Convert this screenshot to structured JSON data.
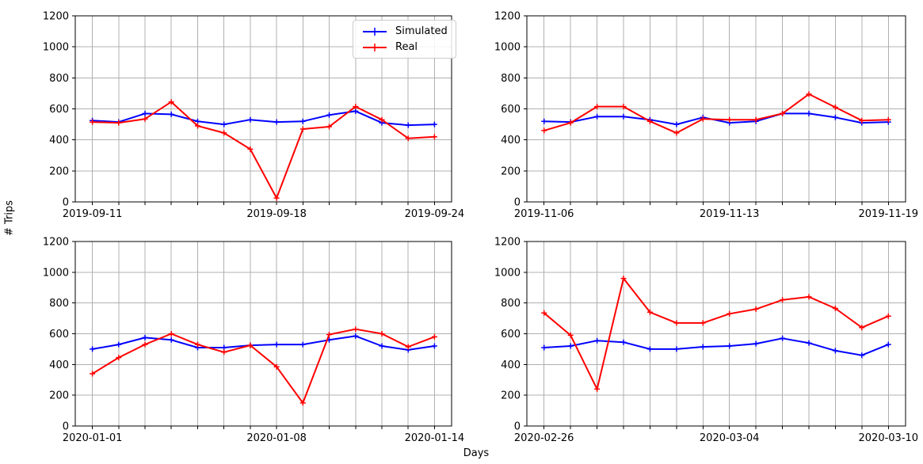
{
  "figure": {
    "ylabel": "# Trips",
    "xlabel": "Days",
    "background": "#ffffff",
    "colors": {
      "simulated": "#0000ff",
      "real": "#ff0000",
      "grid": "#b0b0b0",
      "spine": "#000000",
      "text": "#000000",
      "legend_border": "#cccccc"
    }
  },
  "legend": {
    "position": "upper-right-of-first-subplot",
    "items": [
      {
        "label": "Simulated",
        "color": "#0000ff",
        "marker": "+"
      },
      {
        "label": "Real",
        "color": "#ff0000",
        "marker": "+"
      }
    ]
  },
  "chart_data": [
    {
      "type": "line",
      "title": "",
      "grid": true,
      "ylim": [
        0,
        1200
      ],
      "y_ticks": [
        0,
        200,
        400,
        600,
        800,
        1000,
        1200
      ],
      "x_tick_indices": [
        0,
        7,
        13
      ],
      "x_tick_labels": [
        "2019-09-11",
        "2019-09-18",
        "2019-09-24"
      ],
      "categories": [
        "2019-09-11",
        "2019-09-12",
        "2019-09-13",
        "2019-09-14",
        "2019-09-15",
        "2019-09-16",
        "2019-09-17",
        "2019-09-18",
        "2019-09-19",
        "2019-09-20",
        "2019-09-21",
        "2019-09-22",
        "2019-09-23",
        "2019-09-24"
      ],
      "series": [
        {
          "name": "Simulated",
          "color": "#0000ff",
          "marker": "+",
          "values": [
            525,
            515,
            570,
            565,
            520,
            500,
            530,
            515,
            520,
            560,
            585,
            510,
            495,
            500
          ]
        },
        {
          "name": "Real",
          "color": "#ff0000",
          "marker": "+",
          "values": [
            515,
            510,
            535,
            645,
            490,
            445,
            340,
            25,
            470,
            485,
            615,
            530,
            410,
            420
          ]
        }
      ]
    },
    {
      "type": "line",
      "title": "",
      "grid": true,
      "ylim": [
        0,
        1200
      ],
      "y_ticks": [
        0,
        200,
        400,
        600,
        800,
        1000,
        1200
      ],
      "x_tick_indices": [
        0,
        7,
        13
      ],
      "x_tick_labels": [
        "2019-11-06",
        "2019-11-13",
        "2019-11-19"
      ],
      "categories": [
        "2019-11-06",
        "2019-11-07",
        "2019-11-08",
        "2019-11-09",
        "2019-11-10",
        "2019-11-11",
        "2019-11-12",
        "2019-11-13",
        "2019-11-14",
        "2019-11-15",
        "2019-11-16",
        "2019-11-17",
        "2019-11-18",
        "2019-11-19"
      ],
      "series": [
        {
          "name": "Simulated",
          "color": "#0000ff",
          "marker": "+",
          "values": [
            520,
            515,
            550,
            550,
            530,
            500,
            545,
            510,
            520,
            570,
            570,
            545,
            510,
            515
          ]
        },
        {
          "name": "Real",
          "color": "#ff0000",
          "marker": "+",
          "values": [
            460,
            510,
            615,
            615,
            520,
            445,
            535,
            530,
            530,
            570,
            695,
            610,
            525,
            530
          ]
        }
      ]
    },
    {
      "type": "line",
      "title": "",
      "grid": true,
      "ylim": [
        0,
        1200
      ],
      "y_ticks": [
        0,
        200,
        400,
        600,
        800,
        1000,
        1200
      ],
      "x_tick_indices": [
        0,
        7,
        13
      ],
      "x_tick_labels": [
        "2020-01-01",
        "2020-01-08",
        "2020-01-14"
      ],
      "categories": [
        "2020-01-01",
        "2020-01-02",
        "2020-01-03",
        "2020-01-04",
        "2020-01-05",
        "2020-01-06",
        "2020-01-07",
        "2020-01-08",
        "2020-01-09",
        "2020-01-10",
        "2020-01-11",
        "2020-01-12",
        "2020-01-13",
        "2020-01-14"
      ],
      "series": [
        {
          "name": "Simulated",
          "color": "#0000ff",
          "marker": "+",
          "values": [
            500,
            530,
            575,
            560,
            510,
            510,
            525,
            530,
            530,
            560,
            585,
            520,
            495,
            520
          ]
        },
        {
          "name": "Real",
          "color": "#ff0000",
          "marker": "+",
          "values": [
            340,
            445,
            530,
            600,
            530,
            480,
            525,
            385,
            150,
            595,
            630,
            600,
            515,
            580
          ]
        }
      ]
    },
    {
      "type": "line",
      "title": "",
      "grid": true,
      "ylim": [
        0,
        1200
      ],
      "y_ticks": [
        0,
        200,
        400,
        600,
        800,
        1000,
        1200
      ],
      "x_tick_indices": [
        0,
        7,
        13
      ],
      "x_tick_labels": [
        "2020-02-26",
        "2020-03-04",
        "2020-03-10"
      ],
      "categories": [
        "2020-02-26",
        "2020-02-27",
        "2020-02-28",
        "2020-02-29",
        "2020-03-01",
        "2020-03-02",
        "2020-03-03",
        "2020-03-04",
        "2020-03-05",
        "2020-03-06",
        "2020-03-07",
        "2020-03-08",
        "2020-03-09",
        "2020-03-10"
      ],
      "series": [
        {
          "name": "Simulated",
          "color": "#0000ff",
          "marker": "+",
          "values": [
            510,
            520,
            555,
            545,
            500,
            500,
            515,
            520,
            535,
            570,
            540,
            490,
            460,
            530
          ]
        },
        {
          "name": "Real",
          "color": "#ff0000",
          "marker": "+",
          "values": [
            735,
            590,
            240,
            960,
            740,
            670,
            670,
            730,
            760,
            820,
            840,
            765,
            640,
            715
          ]
        }
      ]
    }
  ]
}
